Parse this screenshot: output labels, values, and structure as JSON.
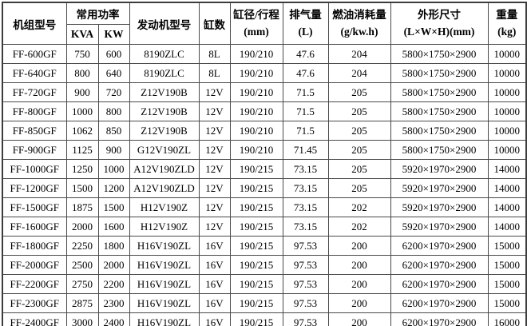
{
  "colors": {
    "background": "#ffffff",
    "border": "#4a4a4a",
    "outer_border": "#3c3c3c",
    "text": "#000000"
  },
  "table": {
    "header": {
      "model": "机组型号",
      "power_group": "常用功率",
      "power_kva": "KVA",
      "power_kw": "KW",
      "engine": "发动机型号",
      "cylinders": "缸数",
      "bore_stroke": {
        "line1": "缸径/行程",
        "line2": "(mm)"
      },
      "displacement": {
        "line1": "排气量",
        "line2": "(L)"
      },
      "fuel": {
        "line1": "燃油消耗量",
        "line2": "(g/kw.h)"
      },
      "dimensions": {
        "line1": "外形尺寸",
        "line2": "(L×W×H)(mm)"
      },
      "weight": {
        "line1": "重量",
        "line2": "(kg)"
      }
    },
    "rows": [
      [
        "FF-600GF",
        "750",
        "600",
        "8190ZLC",
        "8L",
        "190/210",
        "47.6",
        "204",
        "5800×1750×2900",
        "10000"
      ],
      [
        "FF-640GF",
        "800",
        "640",
        "8190ZLC",
        "8L",
        "190/210",
        "47.6",
        "204",
        "5800×1750×2900",
        "10000"
      ],
      [
        "FF-720GF",
        "900",
        "720",
        "Z12V190B",
        "12V",
        "190/210",
        "71.5",
        "205",
        "5800×1750×2900",
        "10000"
      ],
      [
        "FF-800GF",
        "1000",
        "800",
        "Z12V190B",
        "12V",
        "190/210",
        "71.5",
        "205",
        "5800×1750×2900",
        "10000"
      ],
      [
        "FF-850GF",
        "1062",
        "850",
        "Z12V190B",
        "12V",
        "190/210",
        "71.5",
        "205",
        "5800×1750×2900",
        "10000"
      ],
      [
        "FF-900GF",
        "1125",
        "900",
        "G12V190ZL",
        "12V",
        "190/210",
        "71.45",
        "205",
        "5800×1750×2900",
        "10000"
      ],
      [
        "FF-1000GF",
        "1250",
        "1000",
        "A12V190ZLD",
        "12V",
        "190/215",
        "73.15",
        "205",
        "5920×1970×2900",
        "14000"
      ],
      [
        "FF-1200GF",
        "1500",
        "1200",
        "A12V190ZLD",
        "12V",
        "190/215",
        "73.15",
        "205",
        "5920×1970×2900",
        "14000"
      ],
      [
        "FF-1500GF",
        "1875",
        "1500",
        "H12V190Z",
        "12V",
        "190/215",
        "73.15",
        "202",
        "5920×1970×2900",
        "14000"
      ],
      [
        "FF-1600GF",
        "2000",
        "1600",
        "H12V190Z",
        "12V",
        "190/215",
        "73.15",
        "202",
        "5920×1970×2900",
        "14000"
      ],
      [
        "FF-1800GF",
        "2250",
        "1800",
        "H16V190ZL",
        "16V",
        "190/215",
        "97.53",
        "200",
        "6200×1970×2900",
        "15000"
      ],
      [
        "FF-2000GF",
        "2500",
        "2000",
        "H16V190ZL",
        "16V",
        "190/215",
        "97.53",
        "200",
        "6200×1970×2900",
        "15000"
      ],
      [
        "FF-2200GF",
        "2750",
        "2200",
        "H16V190ZL",
        "16V",
        "190/215",
        "97.53",
        "200",
        "6200×1970×2900",
        "15000"
      ],
      [
        "FF-2300GF",
        "2875",
        "2300",
        "H16V190ZL",
        "16V",
        "190/215",
        "97.53",
        "200",
        "6200×1970×2900",
        "15000"
      ],
      [
        "FF-2400GF",
        "3000",
        "2400",
        "H16V190ZL",
        "16V",
        "190/215",
        "97.53",
        "200",
        "6200×1970×2900",
        "16000"
      ]
    ]
  }
}
